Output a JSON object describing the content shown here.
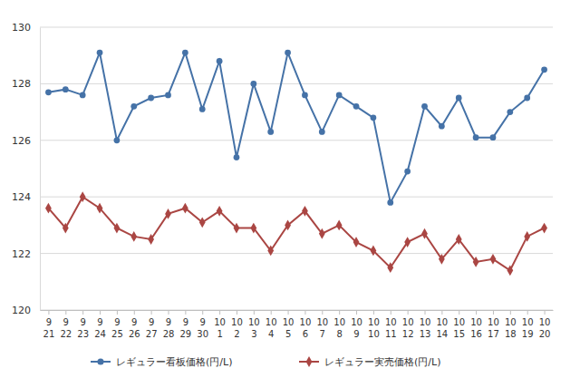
{
  "chart_data": {
    "type": "line",
    "categories": [
      "9\n21",
      "9\n22",
      "9\n23",
      "9\n24",
      "9\n25",
      "9\n26",
      "9\n27",
      "9\n28",
      "9\n29",
      "9\n30",
      "10\n1",
      "10\n2",
      "10\n3",
      "10\n4",
      "10\n5",
      "10\n6",
      "10\n7",
      "10\n8",
      "10\n9",
      "10\n10",
      "10\n11",
      "10\n12",
      "10\n13",
      "10\n14",
      "10\n15",
      "10\n16",
      "10\n17",
      "10\n18",
      "10\n19",
      "10\n20"
    ],
    "series": [
      {
        "name": "レギュラー看板価格(円/L)",
        "color": "#4572a7",
        "marker": "circle",
        "line_style": "solid",
        "values": [
          127.7,
          127.8,
          127.6,
          129.1,
          126.0,
          127.2,
          127.5,
          127.6,
          129.1,
          127.1,
          128.8,
          125.4,
          128.0,
          126.3,
          129.1,
          127.6,
          126.3,
          127.6,
          127.2,
          126.8,
          123.8,
          124.9,
          127.2,
          126.5,
          127.5,
          126.1,
          126.1,
          127.0,
          127.5,
          128.5
        ]
      },
      {
        "name": "レギュラー実売価格(円/L)",
        "color": "#aa4643",
        "marker": "diamond",
        "line_style": "solid",
        "values": [
          123.6,
          122.9,
          124.0,
          123.6,
          122.9,
          122.6,
          122.5,
          123.4,
          123.6,
          123.1,
          123.5,
          122.9,
          122.9,
          122.1,
          123.0,
          123.5,
          122.7,
          123.0,
          122.4,
          122.1,
          121.5,
          122.4,
          122.7,
          121.8,
          122.5,
          121.7,
          121.8,
          121.4,
          122.6,
          122.9
        ]
      }
    ],
    "ylim": [
      120,
      130
    ],
    "yticks": [
      120,
      122,
      124,
      126,
      128,
      130
    ],
    "grid": true,
    "legend": "bottom"
  }
}
